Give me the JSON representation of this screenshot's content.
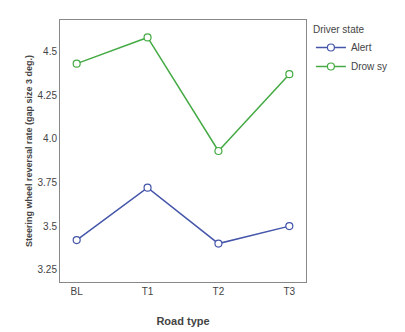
{
  "chart_data": {
    "type": "line",
    "categories": [
      "BL",
      "T1",
      "T2",
      "T3"
    ],
    "series": [
      {
        "name": "Alert",
        "color": "#4455aa",
        "values": [
          3.42,
          3.72,
          3.4,
          3.5
        ]
      },
      {
        "name": "Drow sy",
        "color": "#44aa44",
        "values": [
          4.43,
          4.58,
          3.93,
          4.37
        ]
      }
    ],
    "xlabel": "Road type",
    "ylabel": "Steering wheel reversal rate (gap size 3 deg.)",
    "legend_title": "Driver state",
    "ylim": [
      3.18,
      4.68
    ],
    "yticks": [
      3.25,
      3.5,
      3.75,
      {
        "value": 4.0,
        "label": "4.0"
      },
      4.25,
      4.5
    ],
    "grid": false,
    "legend": "right",
    "marker": "circle",
    "line_style": "solid"
  }
}
